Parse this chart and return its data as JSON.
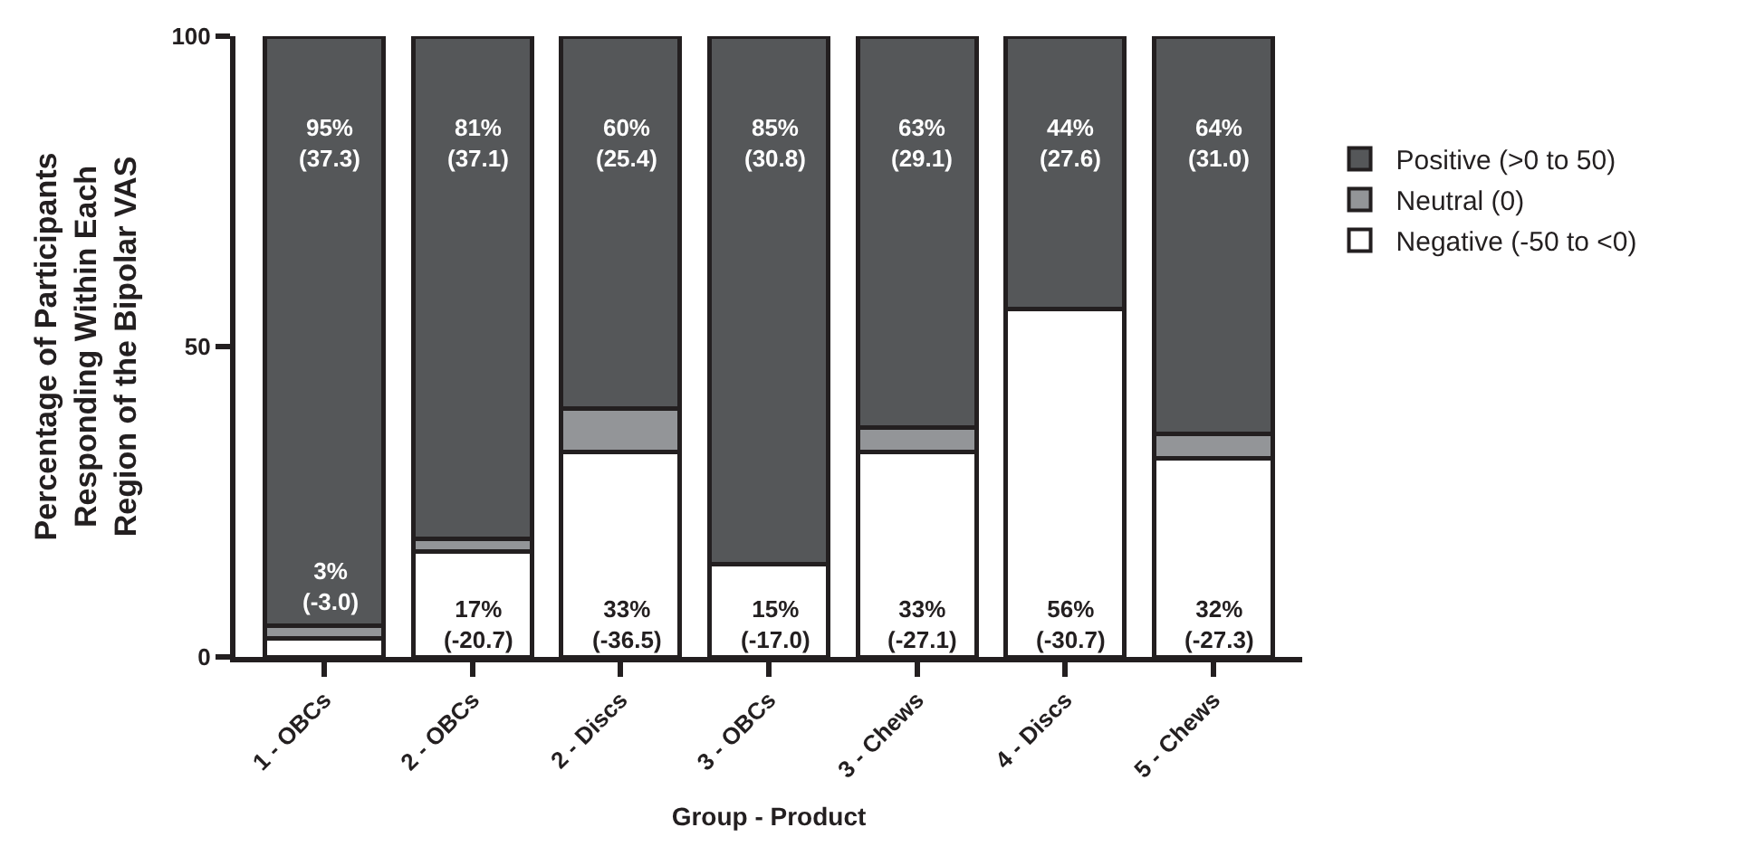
{
  "chart_data": {
    "type": "bar",
    "stacked": true,
    "xlabel": "Group - Product",
    "ylabel": "Percentage of Participants\nResponding Within Each\nRegion of the Bipolar VAS",
    "categories": [
      "1 - OBCs",
      "2 - OBCs",
      "2 - Discs",
      "3 - OBCs",
      "3 - Chews",
      "4 - Discs",
      "5 - Chews"
    ],
    "series": [
      {
        "name": "Negative (-50 to <0)",
        "color": "#ffffff",
        "values": [
          3,
          17,
          33,
          15,
          33,
          56,
          32
        ],
        "value_labels": [
          "3%\n(-3.0)",
          "17%\n(-20.7)",
          "33%\n(-36.5)",
          "15%\n(-17.0)",
          "33%\n(-27.1)",
          "56%\n(-30.7)",
          "32%\n(-27.3)"
        ]
      },
      {
        "name": "Neutral (0)",
        "color": "#939598",
        "values": [
          2,
          2,
          7,
          0,
          4,
          0,
          4
        ]
      },
      {
        "name": "Positive (>0 to 50)",
        "color": "#555759",
        "values": [
          95,
          81,
          60,
          85,
          63,
          44,
          64
        ],
        "value_labels": [
          "95%\n(37.3)",
          "81%\n(37.1)",
          "60%\n(25.4)",
          "85%\n(30.8)",
          "63%\n(29.1)",
          "44%\n(27.6)",
          "64%\n(31.0)"
        ]
      }
    ],
    "ylim": [
      0,
      100
    ],
    "yticks": [
      0,
      50,
      100
    ],
    "legend": "right"
  }
}
